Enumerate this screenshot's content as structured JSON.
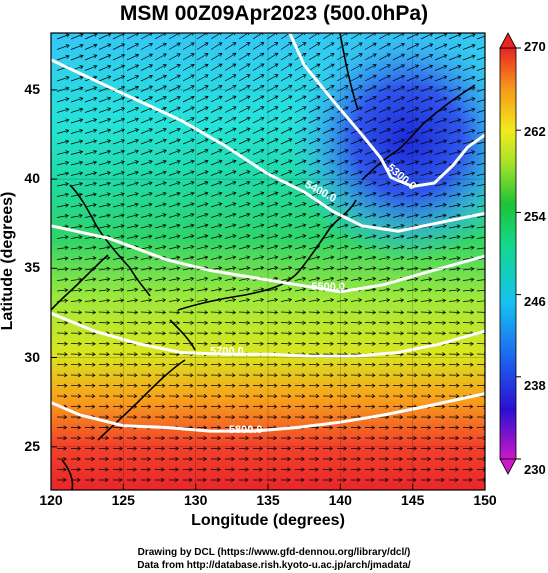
{
  "title": "MSM 00Z09Apr2023 (500.0hPa)",
  "chart_data": {
    "type": "map",
    "variable": "500.0hPa temperature (K), geopotential height contours, wind vectors",
    "x_axis": {
      "label": "Longitude (degrees)",
      "range": [
        120,
        150
      ],
      "ticks": [
        "120",
        "125",
        "130",
        "135",
        "140",
        "145",
        "150"
      ]
    },
    "y_axis": {
      "label": "Latitude (degrees)",
      "range": [
        22.4,
        48
      ],
      "ticks": [
        "25",
        "30",
        "35",
        "40",
        "45"
      ]
    },
    "colorbar": {
      "range": [
        230,
        270
      ],
      "ticks": [
        "230",
        "238",
        "246",
        "254",
        "262",
        "270"
      ]
    },
    "height_contours": [
      {
        "label": "5300.0",
        "level": 5300,
        "points": [
          [
            136.5,
            48
          ],
          [
            137.5,
            46.2
          ],
          [
            139.5,
            44.2
          ],
          [
            141.5,
            42.3
          ],
          [
            142.8,
            41.0
          ],
          [
            143.5,
            39.9
          ],
          [
            145,
            39.4
          ],
          [
            146.5,
            39.6
          ],
          [
            147.8,
            40.6
          ],
          [
            148.8,
            41.6
          ],
          [
            150,
            42.3
          ]
        ]
      },
      {
        "label": "5400.0",
        "level": 5400,
        "points": [
          [
            120,
            46.5
          ],
          [
            125,
            44.6
          ],
          [
            129,
            43.1
          ],
          [
            132,
            41.7
          ],
          [
            135,
            40.1
          ],
          [
            137.5,
            39.1
          ],
          [
            139.5,
            38.0
          ],
          [
            141.5,
            37.2
          ],
          [
            144,
            36.9
          ],
          [
            147,
            37.4
          ],
          [
            150,
            37.9
          ]
        ]
      },
      {
        "label": "5500.0",
        "level": 5500,
        "points": [
          [
            120,
            37.2
          ],
          [
            124,
            36.5
          ],
          [
            128,
            35.3
          ],
          [
            131,
            34.7
          ],
          [
            134,
            34.3
          ],
          [
            137,
            33.9
          ],
          [
            140,
            33.5
          ],
          [
            143,
            33.9
          ],
          [
            146,
            34.6
          ],
          [
            150,
            35.5
          ]
        ]
      },
      {
        "label": "5700.0",
        "level": 5700,
        "points": [
          [
            120,
            32.3
          ],
          [
            123,
            31.3
          ],
          [
            126,
            30.6
          ],
          [
            129,
            30.1
          ],
          [
            132,
            30.0
          ],
          [
            135,
            30.0
          ],
          [
            138,
            29.9
          ],
          [
            141,
            29.9
          ],
          [
            144,
            30.1
          ],
          [
            147,
            30.6
          ],
          [
            150,
            31.3
          ]
        ]
      },
      {
        "label": "5800.0",
        "level": 5800,
        "points": [
          [
            120,
            27.3
          ],
          [
            122,
            26.6
          ],
          [
            125,
            26.0
          ],
          [
            128,
            25.9
          ],
          [
            131,
            25.7
          ],
          [
            134,
            25.7
          ],
          [
            137,
            25.9
          ],
          [
            140,
            26.2
          ],
          [
            143,
            26.6
          ],
          [
            146,
            27.1
          ],
          [
            150,
            27.8
          ]
        ]
      }
    ],
    "contour_labels": [
      {
        "text": "5300.0",
        "lon": 143.2,
        "lat": 40.4,
        "angle": 40
      },
      {
        "text": "5400.0",
        "lon": 137.5,
        "lat": 39.4,
        "angle": 28
      },
      {
        "text": "5500.0",
        "lon": 138.0,
        "lat": 33.6,
        "angle": 0
      },
      {
        "text": "5700.0",
        "lon": 131.0,
        "lat": 30.0,
        "angle": 0
      },
      {
        "text": "5800.0",
        "lon": 132.3,
        "lat": 25.6,
        "angle": 0
      }
    ]
  },
  "x_label": "Longitude (degrees)",
  "y_label": "Latitude  (degrees)",
  "credit_line_1": "Drawing by DCL (https://www.gfd-dennou.org/library/dcl/)",
  "credit_line_2": "Data from http://database.rish.kyoto-u.ac.jp/arch/jmadata/",
  "colors": {
    "background": "#ffffff",
    "contour": "#ffffff",
    "coast": "#000000",
    "vector": "#000000"
  }
}
